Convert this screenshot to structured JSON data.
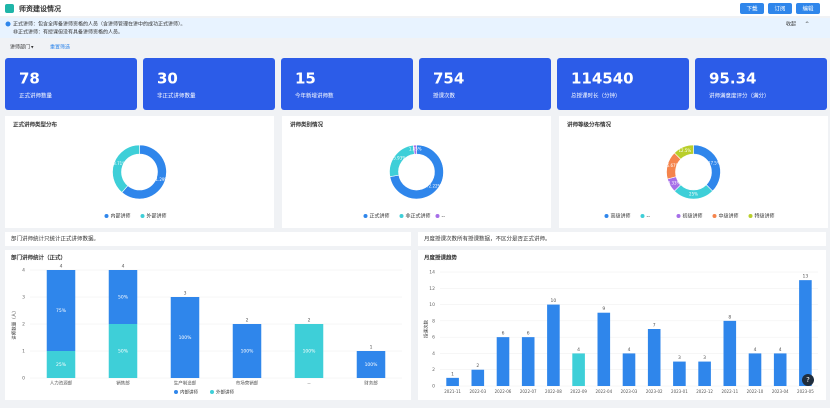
{
  "header": {
    "title": "师资建设情况",
    "buttons": [
      "下载",
      "订阅",
      "编辑"
    ]
  },
  "notice": {
    "lines": [
      "正式讲师：包含全库备讲师资格的人员（含讲师管理在讲中的成功正式讲师）。",
      "非正式讲师：有授课但没有具备讲师资格的人员。"
    ],
    "collapse": "收起"
  },
  "filters": {
    "department": "讲师部门",
    "reset": "重置筛选"
  },
  "kpis": [
    {
      "value": 78,
      "label": "正式讲师数量"
    },
    {
      "value": 30,
      "label": "非正式讲师数量"
    },
    {
      "value": 15,
      "label": "今年新增讲师数"
    },
    {
      "value": 754,
      "label": "授课次数"
    },
    {
      "value": 114540,
      "label": "总授课时长（分钟）"
    },
    {
      "value": 95.34,
      "label": "讲师满意度评分（满分）"
    }
  ],
  "notes": [
    "部门讲师统计只统计正式讲师数据。",
    "月度授课次数所有授课数据，不区分是否正式讲师。"
  ],
  "chart_data": [
    {
      "type": "donut",
      "title": "正式讲师类型分布",
      "categories": [
        "内部讲师",
        "外部讲师"
      ],
      "values": [
        61.29,
        38.71
      ],
      "value_labels": [
        "61.29%",
        "38.71%"
      ],
      "colors": [
        "#2f86eb",
        "#3ecfd8"
      ]
    },
    {
      "type": "donut",
      "title": "讲师类别情况",
      "categories": [
        "正式讲师",
        "非正式讲师",
        "--"
      ],
      "values": [
        72.22,
        25.93,
        1.85
      ],
      "value_labels": [
        "72.22%",
        "25.93%",
        "1.85%"
      ],
      "colors": [
        "#2f86eb",
        "#3ecfd8",
        "#a66ee8"
      ]
    },
    {
      "type": "donut",
      "title": "讲师等级分布情况",
      "categories": [
        "高级讲师",
        "--",
        "初级讲师",
        "中级讲师",
        "特级讲师"
      ],
      "values": [
        37.5,
        25,
        8.33,
        16.67,
        12.5
      ],
      "value_labels": [
        "37.5%",
        "25%",
        "8.33%",
        "16.67%",
        "12.5%"
      ],
      "colors": [
        "#2f86eb",
        "#3ecfd8",
        "#a66ee8",
        "#f5844c",
        "#b9cf2a"
      ]
    },
    {
      "type": "stacked_bar",
      "title": "部门讲师统计（正式）",
      "y_label": "讲师数量（人）",
      "categories": [
        "人力资源部",
        "销售部",
        "生产制造部",
        "市场营销部",
        "--",
        "财务部"
      ],
      "series": [
        {
          "name": "外部讲师",
          "color": "#3ecfd8",
          "values": [
            1,
            2,
            0,
            0,
            2,
            0
          ],
          "share_labels": [
            "25%",
            "50%",
            null,
            null,
            "100%",
            null
          ]
        },
        {
          "name": "内部讲师",
          "color": "#2f86eb",
          "values": [
            3,
            2,
            3,
            2,
            0,
            1
          ],
          "share_labels": [
            "75%",
            "50%",
            "100%",
            "100%",
            null,
            "100%"
          ]
        }
      ],
      "totals": [
        4,
        4,
        3,
        2,
        2,
        1
      ],
      "ylim": [
        0,
        4
      ],
      "yticks": [
        0,
        1,
        2,
        3,
        4
      ]
    },
    {
      "type": "bar",
      "title": "月度授课趋势",
      "y_label": "授课次数",
      "categories": [
        "2021-11",
        "2022-03",
        "2022-06",
        "2022-07",
        "2022-08",
        "2022-09",
        "2022-04",
        "2023-03",
        "2023-02",
        "2023-01",
        "2022-12",
        "2022-11",
        "2022-10",
        "2023-04",
        "2023-05"
      ],
      "values": [
        1,
        2,
        6,
        6,
        10,
        4,
        9,
        4,
        7,
        3,
        3,
        8,
        4,
        4,
        13
      ],
      "colors": [
        "#2f86eb",
        "#2f86eb",
        "#2f86eb",
        "#2f86eb",
        "#2f86eb",
        "#3ecfd8",
        "#2f86eb",
        "#2f86eb",
        "#2f86eb",
        "#2f86eb",
        "#2f86eb",
        "#2f86eb",
        "#2f86eb",
        "#2f86eb",
        "#2f86eb"
      ],
      "ylim": [
        0,
        14
      ],
      "yticks": [
        0,
        2,
        4,
        6,
        8,
        10,
        12,
        14
      ]
    }
  ]
}
